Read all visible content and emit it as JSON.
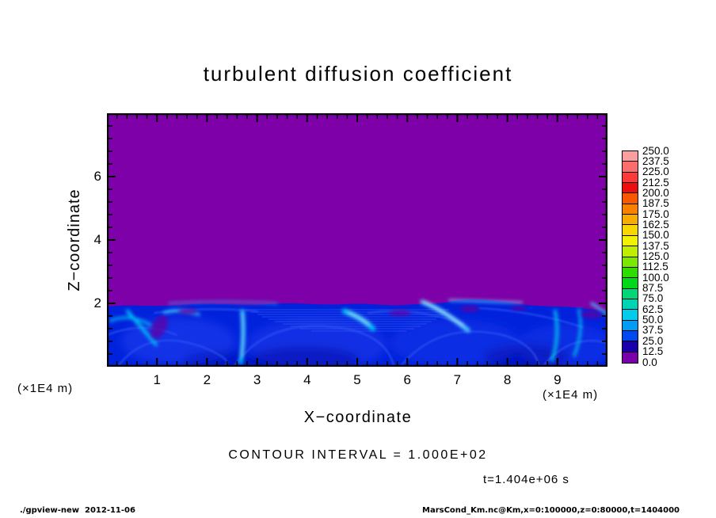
{
  "title": "turbulent  diffusion  coefficient",
  "axes": {
    "x_label": "X−coordinate",
    "y_label": "Z−coordinate",
    "x_unit": "(×1E4 m)",
    "y_unit": "(×1E4 m)",
    "x_ticks": [
      1,
      2,
      3,
      4,
      5,
      6,
      7,
      8,
      9
    ],
    "y_ticks": [
      2,
      4,
      6
    ],
    "x_range": [
      0,
      10
    ],
    "y_range": [
      0,
      8
    ],
    "x_minor_step": 0.2,
    "y_minor_step": 0.4
  },
  "annotations": {
    "contour_interval": "CONTOUR INTERVAL =  1.000E+02",
    "time": "t=1.404e+06 s",
    "footer_left": "./gpview-new  2012-11-06",
    "footer_right": "MarsCond_Km.nc@Km,x=0:100000,z=0:80000,t=1404000"
  },
  "colorbar": {
    "labels": [
      "250.0",
      "237.5",
      "225.0",
      "212.5",
      "200.0",
      "187.5",
      "175.0",
      "162.5",
      "150.0",
      "137.5",
      "125.0",
      "112.5",
      "100.0",
      "87.5",
      "75.0",
      "62.5",
      "50.0",
      "37.5",
      "25.0",
      "12.5",
      "0.0"
    ],
    "colors": [
      "#fc9e9e",
      "#fc6e6e",
      "#fc3a3a",
      "#ee0e0e",
      "#f85800",
      "#f88200",
      "#f8ac00",
      "#f8d600",
      "#f2f200",
      "#c0ee00",
      "#7ce800",
      "#30dc00",
      "#00d818",
      "#00d878",
      "#00d4b4",
      "#00ccec",
      "#009cf8",
      "#0048f0",
      "#1a00aa",
      "#7a00aa"
    ]
  },
  "field_colors": {
    "background_value_color": "#7d00a8",
    "boundary_layer_base_color": "#0122dc",
    "streak_color": "#00c8f8"
  },
  "chart_data": {
    "type": "heatmap",
    "title": "turbulent diffusion coefficient",
    "xlabel": "X-coordinate (×1E4 m)",
    "ylabel": "Z-coordinate (×1E4 m)",
    "xlim": [
      0,
      10
    ],
    "ylim": [
      0,
      8
    ],
    "x_ticks": [
      1,
      2,
      3,
      4,
      5,
      6,
      7,
      8,
      9
    ],
    "y_ticks": [
      2,
      4,
      6
    ],
    "levels": [
      0,
      12.5,
      25,
      37.5,
      50,
      62.5,
      75,
      87.5,
      100,
      112.5,
      125,
      137.5,
      150,
      162.5,
      175,
      187.5,
      200,
      212.5,
      225,
      237.5,
      250
    ],
    "contour_interval": 100,
    "time_label": "t=1.404e+06 s",
    "colorbar_range": [
      0,
      250
    ],
    "legend_position": "right",
    "grid": false,
    "field_summary": [
      {
        "region": "z from ~2 to 8 (×1E4 m), all x",
        "value": "≈ 0 (lowest bin 0–12.5, purple)"
      },
      {
        "region": "z from 0 to ~2 (×1E4 m), all x",
        "value": "turbulent boundary layer, mostly 25–50 (blue) with eddy swirls"
      },
      {
        "region": "cyan streaks/plumes near x ≈ 0.5–1.0, 2.7, 4.8–5.2, 6.0–6.3, 7.4–7.6, 8.2–8.5",
        "value": "enhanced diffusion ≈ 62.5–100"
      },
      {
        "region": "thin wavy interface at z ≈ 2",
        "value": "sharp transition between turbulent layer and quiescent region"
      }
    ]
  }
}
